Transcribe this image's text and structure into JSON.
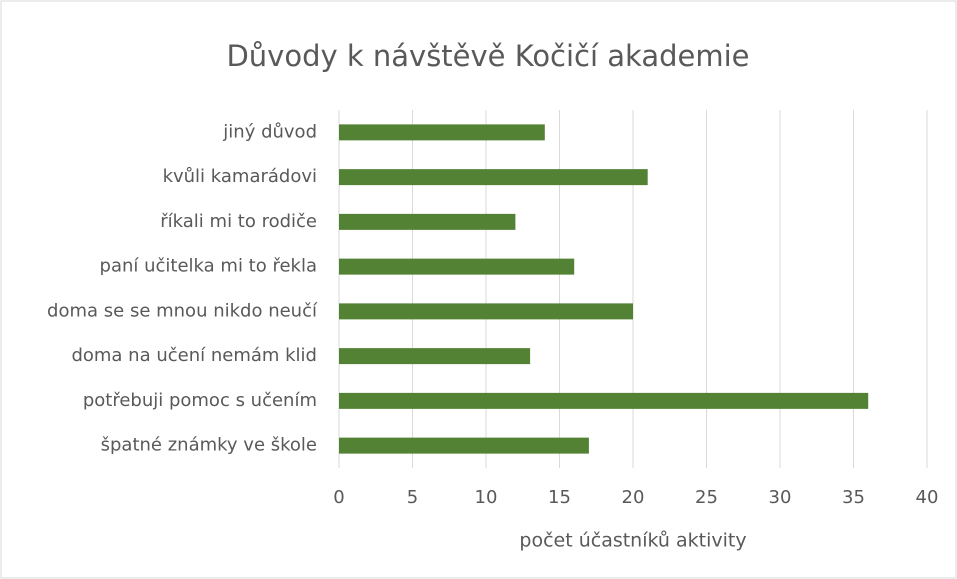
{
  "chart_data": {
    "type": "hbar",
    "title": "Důvody k návštěvě Kočičí akademie",
    "xlabel": "počet účastníků aktivity",
    "categories": [
      "jiný důvod",
      "kvůli kamarádovi",
      "říkali mi to rodiče",
      "paní učitelka mi to řekla",
      "doma se se mnou nikdo neučí",
      "doma na učení nemám klid",
      "potřebuji pomoc s učením",
      "špatné známky ve škole"
    ],
    "values": [
      14,
      21,
      12,
      16,
      20,
      13,
      36,
      17
    ],
    "color": "#548235",
    "xlim": [
      0,
      40
    ],
    "xticks": [
      0,
      5,
      10,
      15,
      20,
      25,
      30,
      35,
      40
    ],
    "grid": true
  }
}
